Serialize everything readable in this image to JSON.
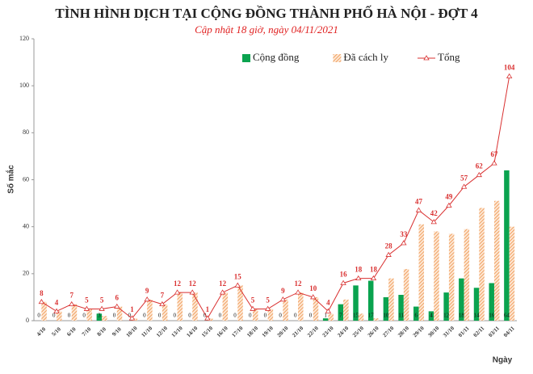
{
  "chart_data": {
    "type": "bar-line",
    "title": "TÌNH HÌNH DỊCH TẠI CỘNG ĐỒNG THÀNH PHỐ HÀ NỘI - ĐỢT 4",
    "subtitle": "Cập nhật 18 giờ, ngày 04/11/2021",
    "y_label": "Số mắc",
    "x_label": "Ngày",
    "categories": [
      "4/10",
      "5/10",
      "6/10",
      "7/10",
      "8/10",
      "9/10",
      "10/10",
      "11/10",
      "12/10",
      "13/10",
      "14/10",
      "15/10",
      "16/10",
      "17/10",
      "18/10",
      "19/10",
      "20/10",
      "21/10",
      "22/10",
      "23/10",
      "24/10",
      "25/10",
      "26/10",
      "27/10",
      "28/10",
      "29/10",
      "30/10",
      "31/10",
      "01/11",
      "02/11",
      "03/11",
      "04/11"
    ],
    "series": [
      {
        "name": "Cộng đồng",
        "color": "#0aa34f",
        "kind": "bar",
        "values": [
          0,
          0,
          0,
          0,
          3,
          0,
          0,
          0,
          0,
          0,
          0,
          0,
          0,
          0,
          0,
          0,
          0,
          0,
          0,
          1,
          7,
          15,
          17,
          10,
          11,
          6,
          4,
          12,
          18,
          14,
          16,
          64
        ]
      },
      {
        "name": "Đã cách ly",
        "color": "#f0a060",
        "kind": "bar",
        "values": [
          8,
          4,
          7,
          5,
          2,
          6,
          1,
          9,
          7,
          12,
          12,
          1,
          12,
          15,
          5,
          5,
          9,
          12,
          10,
          3,
          9,
          3,
          1,
          18,
          22,
          41,
          38,
          37,
          39,
          48,
          51,
          40
        ]
      },
      {
        "name": "Tổng",
        "color": "#d93030",
        "kind": "line",
        "values": [
          8,
          4,
          7,
          5,
          5,
          6,
          1,
          9,
          7,
          12,
          12,
          1,
          12,
          15,
          5,
          5,
          9,
          12,
          10,
          4,
          16,
          18,
          18,
          28,
          33,
          47,
          42,
          49,
          57,
          62,
          67,
          104
        ]
      }
    ],
    "ylim": [
      0,
      120
    ],
    "yticks": [
      0,
      20,
      40,
      60,
      80,
      100,
      120
    ]
  }
}
